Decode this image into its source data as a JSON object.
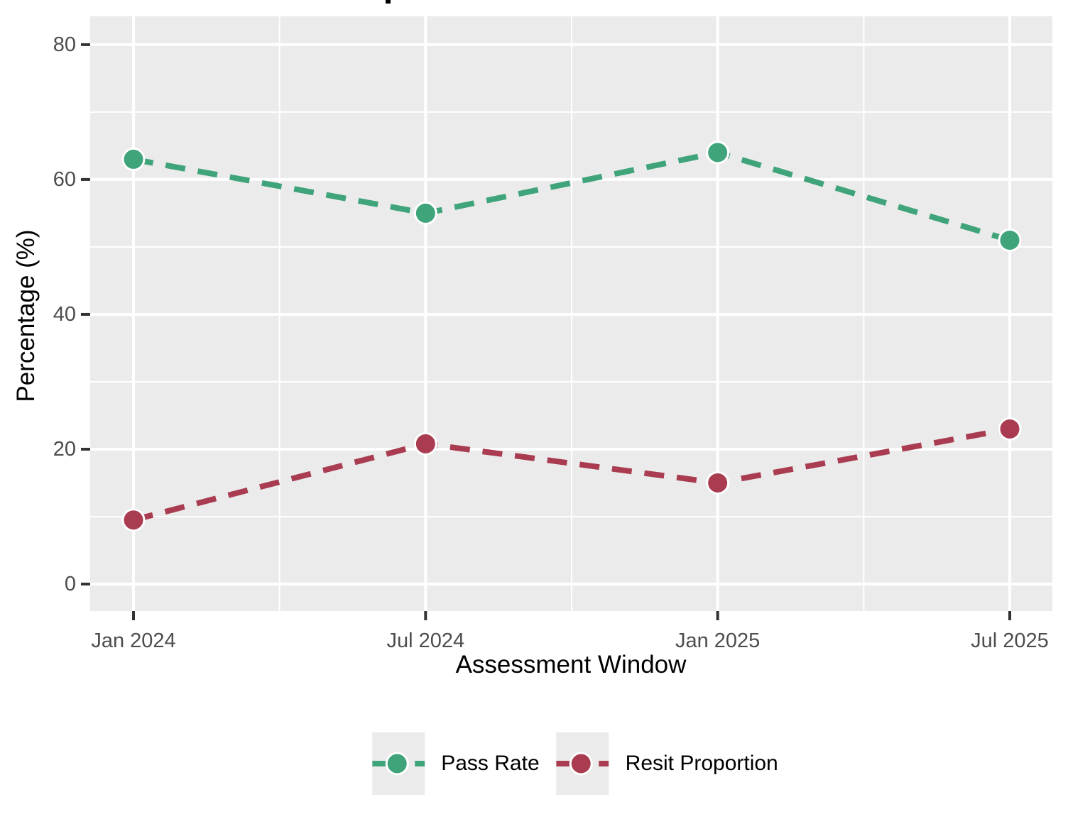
{
  "chart_data": {
    "type": "line",
    "title": "",
    "xlabel": "Assessment Window",
    "ylabel": "Percentage (%)",
    "categories": [
      "Jan 2024",
      "Jul 2024",
      "Jan 2025",
      "Jul 2025"
    ],
    "x_months": [
      0,
      6,
      12,
      18
    ],
    "x_minor_months": [
      3,
      9,
      15
    ],
    "y_major_ticks": [
      0,
      20,
      40,
      60,
      80
    ],
    "y_minor_ticks": [
      10,
      30,
      50,
      70
    ],
    "ylim": [
      0,
      80
    ],
    "series": [
      {
        "name": "Pass Rate",
        "color": "#3fa47a",
        "values": [
          63,
          55,
          64,
          51
        ]
      },
      {
        "name": "Resit Proportion",
        "color": "#a93c50",
        "values": [
          9.5,
          20.8,
          15,
          23
        ]
      }
    ],
    "line_style": "dashed",
    "marker": "circle-white-rim",
    "legend_position": "bottom",
    "grid": true,
    "panel_background": "#ebebeb",
    "gridline_color": "#ffffff",
    "tick_mark_color": "#333333",
    "tick_label_color": "#4d4d4d",
    "axis_title_color": "#000000"
  }
}
